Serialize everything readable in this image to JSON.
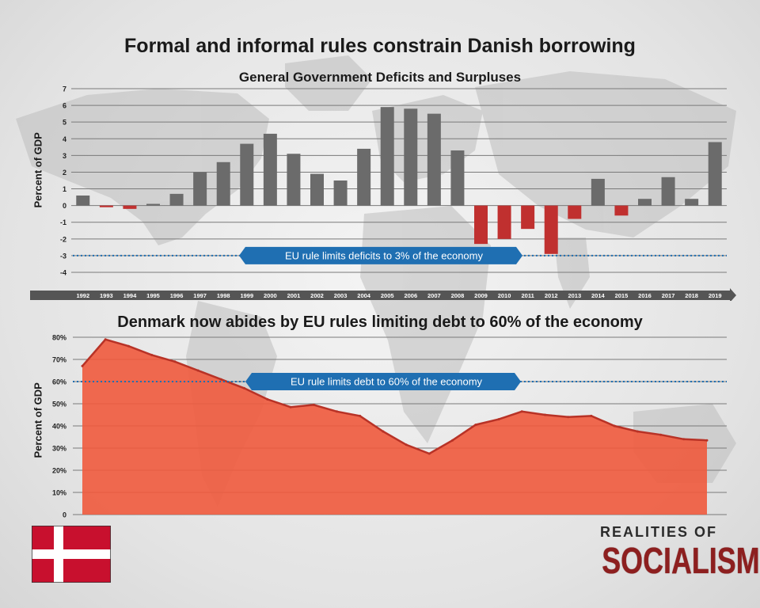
{
  "header": {
    "title": "Formal and informal rules constrain Danish borrowing",
    "subtitle": "General Government Deficits and Surpluses",
    "debt_title": "Denmark now abides by EU rules limiting debt to 60% of the economy"
  },
  "branding": {
    "line1": "REALITIES OF",
    "line2": "SOCIALISM"
  },
  "colors": {
    "surplus_bar": "#6b6b6b",
    "deficit_bar": "#c0302f",
    "eu_rule": "#1f6fb2",
    "debt_area": "#ef5a3d",
    "debt_line": "#b83226",
    "axis_strip": "#555555",
    "flag_red": "#c8102e"
  },
  "chart_data": [
    {
      "type": "bar",
      "title": "General Government Deficits and Surpluses",
      "ylabel": "Percent of GDP",
      "xlabel": "",
      "ylim": [
        -4,
        7
      ],
      "yticks": [
        "7",
        "6",
        "5",
        "4",
        "3",
        "2",
        "1",
        "0",
        "-1",
        "-2",
        "-3",
        "-4"
      ],
      "categories": [
        "1992",
        "1993",
        "1994",
        "1995",
        "1996",
        "1997",
        "1998",
        "1999",
        "2000",
        "2001",
        "2002",
        "2003",
        "2004",
        "2005",
        "2006",
        "2007",
        "2008",
        "2009",
        "2010",
        "2011",
        "2012",
        "2013",
        "2014",
        "2015",
        "2016",
        "2017",
        "2018",
        "2019"
      ],
      "values": [
        0.6,
        -0.1,
        -0.2,
        0.1,
        0.7,
        2.0,
        2.6,
        3.7,
        4.3,
        3.1,
        1.9,
        1.5,
        3.4,
        5.9,
        5.8,
        5.5,
        3.3,
        -2.3,
        -2.0,
        -1.4,
        -2.9,
        -0.8,
        1.6,
        -0.6,
        0.4,
        1.7,
        0.4,
        3.8
      ],
      "reference_line": {
        "value": -3,
        "label": "EU rule limits deficits to 3% of the economy"
      },
      "grid": true
    },
    {
      "type": "area",
      "title": "Denmark now abides by EU rules limiting debt to 60% of the economy",
      "ylabel": "Percent of GDP",
      "xlabel": "",
      "ylim": [
        0,
        80
      ],
      "yticks": [
        "80%",
        "70%",
        "60%",
        "50%",
        "40%",
        "30%",
        "20%",
        "10%",
        "0"
      ],
      "x": [
        "1992",
        "1993",
        "1994",
        "1995",
        "1996",
        "1997",
        "1998",
        "1999",
        "2000",
        "2001",
        "2002",
        "2003",
        "2004",
        "2005",
        "2006",
        "2007",
        "2008",
        "2009",
        "2010",
        "2011",
        "2012",
        "2013",
        "2014",
        "2015",
        "2016",
        "2017",
        "2018",
        "2019"
      ],
      "values": [
        67,
        79,
        76,
        72,
        69,
        65,
        61,
        57,
        52,
        48.5,
        49.5,
        46.5,
        44.5,
        37.5,
        31.5,
        27.5,
        33.5,
        40.5,
        43,
        46.5,
        45,
        44,
        44.5,
        40,
        37.5,
        36,
        34,
        33.5
      ],
      "reference_line": {
        "value": 60,
        "label": "EU rule limits debt to 60% of the economy"
      },
      "grid": true
    }
  ]
}
